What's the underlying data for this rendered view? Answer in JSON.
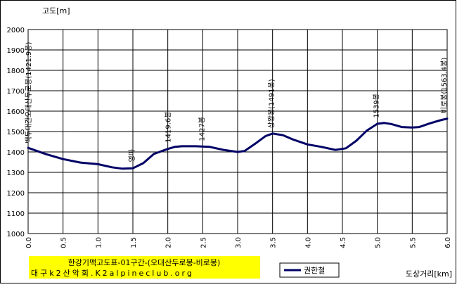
{
  "chart_data": {
    "type": "line",
    "ylabel": "고도[m]",
    "xlabel": "도상거리[km]",
    "xlim": [
      0.0,
      6.0
    ],
    "ylim": [
      1000,
      2000
    ],
    "x_ticks": [
      "0.0",
      "0.5",
      "1.0",
      "1.5",
      "2.0",
      "2.5",
      "3.0",
      "3.5",
      "4.0",
      "4.5",
      "5.0",
      "5.5",
      "6.0"
    ],
    "y_ticks": [
      "1000",
      "1100",
      "1200",
      "1300",
      "1400",
      "1500",
      "1600",
      "1700",
      "1800",
      "1900",
      "2000"
    ],
    "grid": true,
    "legend_position": "bottom-right",
    "series": [
      {
        "name": "권한철",
        "color": "#000066",
        "x": [
          0.0,
          0.25,
          0.5,
          0.75,
          1.0,
          1.2,
          1.35,
          1.5,
          1.65,
          1.8,
          2.0,
          2.1,
          2.2,
          2.4,
          2.6,
          2.8,
          3.0,
          3.1,
          3.25,
          3.4,
          3.5,
          3.65,
          3.8,
          4.0,
          4.2,
          4.4,
          4.55,
          4.7,
          4.85,
          5.0,
          5.1,
          5.2,
          5.35,
          5.5,
          5.6,
          5.75,
          5.9,
          6.0
        ],
        "y": [
          1420,
          1390,
          1365,
          1348,
          1340,
          1325,
          1318,
          1320,
          1345,
          1390,
          1415,
          1425,
          1428,
          1428,
          1425,
          1410,
          1400,
          1405,
          1440,
          1478,
          1490,
          1482,
          1460,
          1437,
          1425,
          1410,
          1418,
          1455,
          1505,
          1538,
          1542,
          1537,
          1522,
          1520,
          1522,
          1540,
          1555,
          1563
        ]
      }
    ],
    "annotations": [
      {
        "text": "백두대간오대산두로봉(1421.9봉)",
        "x": 0.0,
        "y": 1421.9
      },
      {
        "text": "영마",
        "x": 1.48,
        "y": 1330
      },
      {
        "text": "1419.6봉",
        "x": 2.0,
        "y": 1425
      },
      {
        "text": "1427봉",
        "x": 2.48,
        "y": 1432
      },
      {
        "text": "상왕봉(1491봉)",
        "x": 3.48,
        "y": 1495
      },
      {
        "text": "1539봉",
        "x": 4.98,
        "y": 1546
      },
      {
        "text": "비로봉(1563.4봉)",
        "x": 5.95,
        "y": 1568
      }
    ],
    "caption": {
      "line1": "한강기맥고도표-01구간-(오대산두로봉-비로봉)",
      "line2": "대구k2산악회.K2alpineclub.org",
      "background": "#ffff00"
    }
  }
}
